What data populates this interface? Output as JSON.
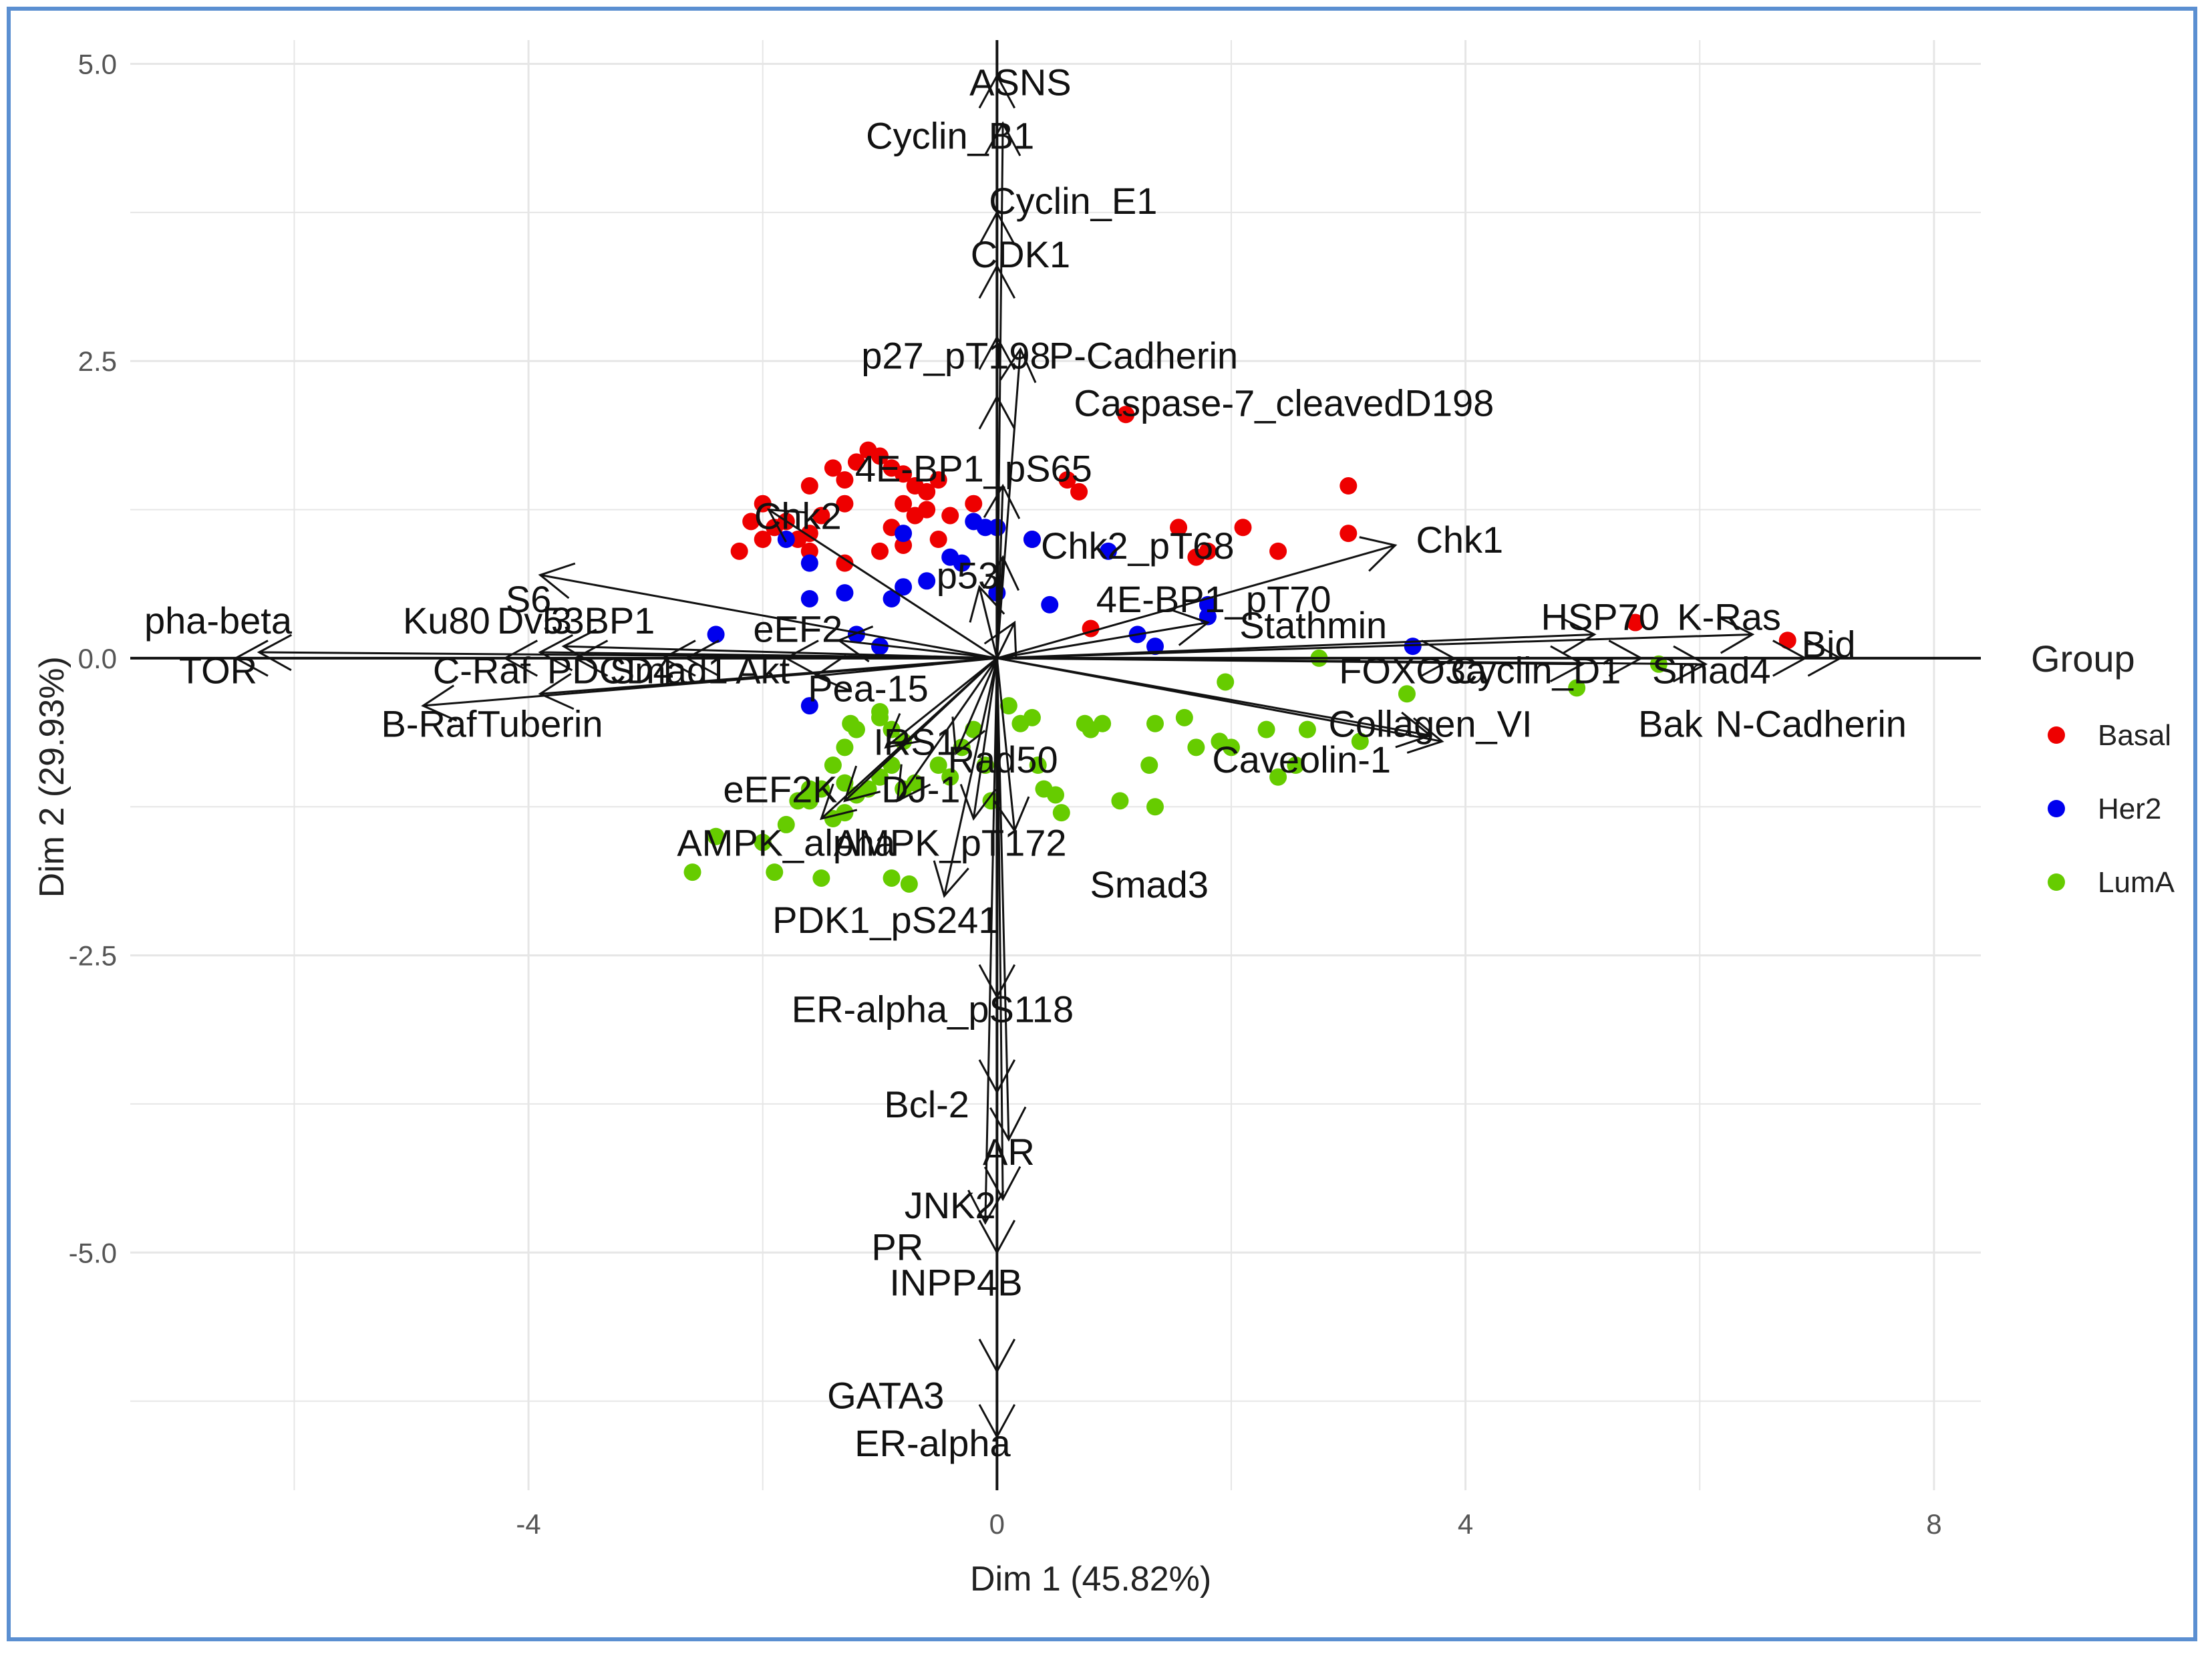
{
  "chart_data": {
    "type": "scatter",
    "subtype": "pca-biplot",
    "xlabel": "Dim 1 (45.82%)",
    "ylabel": "Dim 2 (29.93%)",
    "xlim": [
      -7.4,
      8.4
    ],
    "ylim": [
      -7.0,
      5.2
    ],
    "xticks": [
      {
        "value": -4,
        "label": "-4"
      },
      {
        "value": 0,
        "label": "0"
      },
      {
        "value": 4,
        "label": "4"
      },
      {
        "value": 8,
        "label": "8"
      }
    ],
    "yticks": [
      {
        "value": 5.0,
        "label": "5.0"
      },
      {
        "value": 2.5,
        "label": "2.5"
      },
      {
        "value": 0.0,
        "label": "0.0"
      },
      {
        "value": -2.5,
        "label": "-2.5"
      },
      {
        "value": -5.0,
        "label": "-5.0"
      }
    ],
    "legend": {
      "title": "Group",
      "position": "right",
      "entries": [
        {
          "name": "Basal",
          "color": "#ee0000"
        },
        {
          "name": "Her2",
          "color": "#0000ee"
        },
        {
          "name": "LumA",
          "color": "#66cc00"
        }
      ]
    },
    "series": [
      {
        "name": "Basal",
        "color": "#ee0000",
        "points": [
          [
            -2.0,
            1.3
          ],
          [
            -1.8,
            1.15
          ],
          [
            -1.6,
            1.45
          ],
          [
            -1.4,
            1.6
          ],
          [
            -1.3,
            1.5
          ],
          [
            -1.2,
            1.65
          ],
          [
            -1.1,
            1.75
          ],
          [
            -1.0,
            1.7
          ],
          [
            -0.9,
            1.6
          ],
          [
            -0.8,
            1.55
          ],
          [
            -0.7,
            1.45
          ],
          [
            -0.6,
            1.4
          ],
          [
            -0.5,
            1.5
          ],
          [
            -0.7,
            1.2
          ],
          [
            -0.6,
            1.25
          ],
          [
            -0.8,
            1.3
          ],
          [
            -0.9,
            1.1
          ],
          [
            -1.3,
            1.3
          ],
          [
            -1.5,
            1.2
          ],
          [
            -1.7,
            1.0
          ],
          [
            -1.9,
            1.1
          ],
          [
            -2.1,
            1.15
          ],
          [
            -2.0,
            1.0
          ],
          [
            -2.2,
            0.9
          ],
          [
            -1.6,
            0.9
          ],
          [
            -1.3,
            0.8
          ],
          [
            -1.0,
            0.9
          ],
          [
            -0.8,
            0.95
          ],
          [
            -0.5,
            1.0
          ],
          [
            -0.4,
            1.2
          ],
          [
            -0.2,
            1.3
          ],
          [
            0.0,
            1.1
          ],
          [
            0.3,
            1.0
          ],
          [
            0.6,
            1.5
          ],
          [
            0.7,
            1.4
          ],
          [
            1.1,
            2.05
          ],
          [
            1.55,
            1.1
          ],
          [
            1.7,
            0.85
          ],
          [
            1.8,
            0.9
          ],
          [
            2.1,
            1.1
          ],
          [
            2.4,
            0.9
          ],
          [
            3.0,
            1.45
          ],
          [
            3.0,
            1.05
          ],
          [
            0.8,
            0.25
          ],
          [
            -1.6,
            1.05
          ],
          [
            5.45,
            0.3
          ],
          [
            6.75,
            0.15
          ]
        ]
      },
      {
        "name": "Her2",
        "color": "#0000ee",
        "points": [
          [
            -2.4,
            0.2
          ],
          [
            -1.8,
            1.0
          ],
          [
            -1.6,
            0.8
          ],
          [
            -1.6,
            0.5
          ],
          [
            -1.3,
            0.55
          ],
          [
            -1.2,
            0.2
          ],
          [
            -1.0,
            0.1
          ],
          [
            -0.9,
            0.5
          ],
          [
            -0.8,
            0.6
          ],
          [
            -0.6,
            0.65
          ],
          [
            -0.4,
            0.85
          ],
          [
            -0.3,
            0.8
          ],
          [
            -0.2,
            1.15
          ],
          [
            -0.1,
            1.1
          ],
          [
            0.0,
            1.1
          ],
          [
            0.0,
            0.55
          ],
          [
            0.3,
            1.0
          ],
          [
            0.45,
            0.45
          ],
          [
            0.95,
            0.9
          ],
          [
            1.2,
            0.2
          ],
          [
            1.35,
            0.1
          ],
          [
            1.8,
            0.45
          ],
          [
            1.8,
            0.35
          ],
          [
            -1.6,
            -0.4
          ],
          [
            -0.8,
            1.05
          ],
          [
            3.55,
            0.1
          ]
        ]
      },
      {
        "name": "LumA",
        "color": "#66cc00",
        "points": [
          [
            -2.6,
            -1.8
          ],
          [
            -2.4,
            -1.5
          ],
          [
            -2.0,
            -1.55
          ],
          [
            -1.8,
            -1.4
          ],
          [
            -1.7,
            -1.2
          ],
          [
            -1.6,
            -1.2
          ],
          [
            -1.5,
            -1.1
          ],
          [
            -1.4,
            -1.35
          ],
          [
            -1.3,
            -1.3
          ],
          [
            -1.2,
            -1.15
          ],
          [
            -1.1,
            -1.1
          ],
          [
            -1.0,
            -1.0
          ],
          [
            -0.9,
            -0.9
          ],
          [
            -0.8,
            -1.1
          ],
          [
            -0.7,
            -1.05
          ],
          [
            -1.4,
            -0.9
          ],
          [
            -1.3,
            -0.75
          ],
          [
            -1.25,
            -0.55
          ],
          [
            -1.0,
            -0.45
          ],
          [
            -0.9,
            -0.6
          ],
          [
            -0.8,
            -0.7
          ],
          [
            -0.5,
            -0.9
          ],
          [
            -0.4,
            -1.0
          ],
          [
            -0.3,
            -0.75
          ],
          [
            -0.2,
            -0.6
          ],
          [
            -0.1,
            -0.9
          ],
          [
            -0.05,
            -1.2
          ],
          [
            0.1,
            -0.4
          ],
          [
            0.2,
            -0.55
          ],
          [
            0.3,
            -0.5
          ],
          [
            0.35,
            -0.9
          ],
          [
            0.4,
            -1.1
          ],
          [
            0.5,
            -1.15
          ],
          [
            0.55,
            -1.3
          ],
          [
            0.8,
            -0.6
          ],
          [
            0.75,
            -0.55
          ],
          [
            0.9,
            -0.55
          ],
          [
            1.05,
            -1.2
          ],
          [
            1.35,
            -1.25
          ],
          [
            1.35,
            -0.55
          ],
          [
            1.3,
            -0.9
          ],
          [
            1.6,
            -0.5
          ],
          [
            1.7,
            -0.75
          ],
          [
            1.9,
            -0.7
          ],
          [
            1.95,
            -0.2
          ],
          [
            2.0,
            -0.75
          ],
          [
            2.3,
            -0.6
          ],
          [
            2.4,
            -1.0
          ],
          [
            2.55,
            -0.9
          ],
          [
            2.65,
            -0.6
          ],
          [
            2.75,
            0.0
          ],
          [
            3.1,
            -0.7
          ],
          [
            3.5,
            -0.3
          ],
          [
            4.95,
            -0.25
          ],
          [
            5.65,
            -0.05
          ],
          [
            -1.2,
            -0.6
          ],
          [
            -1.0,
            -0.5
          ],
          [
            -1.9,
            -1.8
          ],
          [
            -1.5,
            -1.85
          ],
          [
            -0.9,
            -1.85
          ],
          [
            -0.75,
            -1.9
          ],
          [
            -1.3,
            -1.05
          ],
          [
            -1.6,
            -1.1
          ]
        ]
      }
    ],
    "vectors": [
      {
        "label": "ASNS",
        "x": 0.0,
        "y": 4.9
      },
      {
        "label": "Cyclin_B1",
        "x": 0.05,
        "y": 4.5
      },
      {
        "label": "Cyclin_E1",
        "x": 0.0,
        "y": 3.75
      },
      {
        "label": "CDK1",
        "x": 0.0,
        "y": 3.3
      },
      {
        "label": "p27_pT198",
        "x": 0.0,
        "y": 2.7
      },
      {
        "label": "P-Cadherin",
        "x": 0.2,
        "y": 2.6
      },
      {
        "label": "Caspase-7_cleavedD198",
        "x": 0.0,
        "y": 2.2
      },
      {
        "label": "4E-BP1_pS65",
        "x": 0.05,
        "y": 1.45
      },
      {
        "label": "Chk2",
        "x": -1.95,
        "y": 1.25
      },
      {
        "label": "Chk2_pT68",
        "x": 0.05,
        "y": 0.85
      },
      {
        "label": "p53",
        "x": -0.15,
        "y": 0.6
      },
      {
        "label": "Chk1",
        "x": 3.4,
        "y": 0.95
      },
      {
        "label": "4E-BP1_pT70",
        "x": 0.15,
        "y": 0.3
      },
      {
        "label": "Stathmin",
        "x": 1.8,
        "y": 0.3
      },
      {
        "label": "HSP70",
        "x": 5.1,
        "y": 0.2
      },
      {
        "label": "K-Ras",
        "x": 6.45,
        "y": 0.2
      },
      {
        "label": "Bid",
        "x": 7.2,
        "y": 0.0
      },
      {
        "label": "FOXO3a",
        "x": 3.9,
        "y": 0.0
      },
      {
        "label": "Cyclin_D1",
        "x": 5.0,
        "y": -0.05
      },
      {
        "label": "Smad4",
        "x": 6.05,
        "y": -0.05
      },
      {
        "label": "Bak",
        "x": 5.5,
        "y": 0.0
      },
      {
        "label": "N-Cadherin",
        "x": 6.9,
        "y": 0.0
      },
      {
        "label": "Collagen_VI",
        "x": 3.7,
        "y": -0.65
      },
      {
        "label": "Caveolin-1",
        "x": 3.8,
        "y": -0.7
      },
      {
        "label": "Smad3",
        "x": 0.15,
        "y": -1.45
      },
      {
        "label": "S6",
        "x": -3.9,
        "y": 0.7
      },
      {
        "label": "53BP1",
        "x": -3.7,
        "y": 0.1
      },
      {
        "label": "Ku80",
        "x": -3.9,
        "y": 0.05
      },
      {
        "label": "Dvl3",
        "x": -3.6,
        "y": 0.0
      },
      {
        "label": "PDCD4",
        "x": -2.85,
        "y": 0.0
      },
      {
        "label": "Smad1",
        "x": -2.65,
        "y": 0.0
      },
      {
        "label": "Akt",
        "x": -1.8,
        "y": 0.0
      },
      {
        "label": "eEF2",
        "x": -1.35,
        "y": 0.15
      },
      {
        "label": "PEA-15",
        "x": -1.55,
        "y": -0.15
      },
      {
        "label": "IRS1",
        "x": -0.95,
        "y": -0.75
      },
      {
        "label": "Rad50",
        "x": -0.35,
        "y": -0.8
      },
      {
        "label": "DJ-1",
        "x": -0.85,
        "y": -1.2
      },
      {
        "label": "eEF2K",
        "x": -1.3,
        "y": -1.2
      },
      {
        "label": "AMPK_alpha",
        "x": -1.5,
        "y": -1.35
      },
      {
        "label": "AMPK_pT172",
        "x": -0.2,
        "y": -1.35
      },
      {
        "label": "PDK1_pS241",
        "x": -0.45,
        "y": -2.0
      },
      {
        "label": "ER-alpha_pS118",
        "x": 0.0,
        "y": -2.85
      },
      {
        "label": "Bcl-2",
        "x": 0.0,
        "y": -3.65
      },
      {
        "label": "AR",
        "x": 0.1,
        "y": -4.05
      },
      {
        "label": "JNK2",
        "x": 0.05,
        "y": -4.55
      },
      {
        "label": "PR",
        "x": -0.1,
        "y": -4.75
      },
      {
        "label": "INPP4B",
        "x": 0.0,
        "y": -5.0
      },
      {
        "label": "GATA3",
        "x": 0.0,
        "y": -6.0
      },
      {
        "label": "ER-alpha",
        "x": 0.0,
        "y": -6.55
      },
      {
        "label": "alpha-beta (truncated)",
        "x": -6.3,
        "y": 0.05
      },
      {
        "label": "mTOR (truncated)",
        "x": -6.5,
        "y": 0.0
      },
      {
        "label": "C-Raf",
        "x": -4.2,
        "y": 0.0
      },
      {
        "label": "B-Raf",
        "x": -4.9,
        "y": -0.4
      },
      {
        "label": "Tuberin",
        "x": -3.9,
        "y": -0.3
      }
    ],
    "labels": [
      {
        "text": "ASNS",
        "x": 0.2,
        "y": 4.85
      },
      {
        "text": "Cyclin_B1",
        "x": -0.4,
        "y": 4.4
      },
      {
        "text": "Cyclin_E1",
        "x": 0.65,
        "y": 3.85
      },
      {
        "text": "CDK1",
        "x": 0.2,
        "y": 3.4
      },
      {
        "text": "p27_pT198",
        "x": -0.35,
        "y": 2.55
      },
      {
        "text": "P-Cadherin",
        "x": 1.25,
        "y": 2.55
      },
      {
        "text": "Caspase-7_cleavedD198",
        "x": 2.45,
        "y": 2.15
      },
      {
        "text": "4E-BP1_pS65",
        "x": -0.2,
        "y": 1.6
      },
      {
        "text": "Chk2",
        "x": -1.7,
        "y": 1.2
      },
      {
        "text": "Chk2_pT68",
        "x": 1.2,
        "y": 0.95
      },
      {
        "text": "p53",
        "x": -0.25,
        "y": 0.7
      },
      {
        "text": "Chk1",
        "x": 3.95,
        "y": 1.0
      },
      {
        "text": "4E-BP1_pT70",
        "x": 1.85,
        "y": 0.5
      },
      {
        "text": "Stathmin",
        "x": 2.7,
        "y": 0.28
      },
      {
        "text": "HSP70",
        "x": 5.15,
        "y": 0.35
      },
      {
        "text": "K-Ras",
        "x": 6.25,
        "y": 0.35
      },
      {
        "text": "Bid",
        "x": 7.1,
        "y": 0.12
      },
      {
        "text": "FOXO3a",
        "x": 3.55,
        "y": -0.1
      },
      {
        "text": "Cyclin_D1",
        "x": 4.6,
        "y": -0.1
      },
      {
        "text": "Smad4",
        "x": 6.1,
        "y": -0.1
      },
      {
        "text": "Bak",
        "x": 5.75,
        "y": -0.55
      },
      {
        "text": "N-Cadherin",
        "x": 6.95,
        "y": -0.55
      },
      {
        "text": "Collagen_VI",
        "x": 3.7,
        "y": -0.55
      },
      {
        "text": "Caveolin-1",
        "x": 2.6,
        "y": -0.85
      },
      {
        "text": "Smad3",
        "x": 1.3,
        "y": -1.9
      },
      {
        "text": "S6",
        "x": -4.0,
        "y": 0.5
      },
      {
        "text": "53BP1",
        "x": -3.4,
        "y": 0.32
      },
      {
        "text": "Ku80",
        "x": -4.7,
        "y": 0.32
      },
      {
        "text": "Dvl3",
        "x": -3.95,
        "y": 0.32
      },
      {
        "text": "PDCD4",
        "x": -3.3,
        "y": -0.1
      },
      {
        "text": "Smad1",
        "x": -2.8,
        "y": -0.1
      },
      {
        "text": "Akt",
        "x": -2.0,
        "y": -0.1
      },
      {
        "text": "eEF2",
        "x": -1.7,
        "y": 0.25
      },
      {
        "text": "Pea-15",
        "x": -1.1,
        "y": -0.25
      },
      {
        "text": "IRS1",
        "x": -0.7,
        "y": -0.7
      },
      {
        "text": "Rad50",
        "x": 0.05,
        "y": -0.85
      },
      {
        "text": "DJ-1",
        "x": -0.65,
        "y": -1.1
      },
      {
        "text": "eEF2K",
        "x": -1.85,
        "y": -1.1
      },
      {
        "text": "AMPK_alpha",
        "x": -1.8,
        "y": -1.55
      },
      {
        "text": "AMPK_pT172",
        "x": -0.4,
        "y": -1.55
      },
      {
        "text": "PDK1_pS241",
        "x": -0.95,
        "y": -2.2
      },
      {
        "text": "ER-alpha_pS118",
        "x": -0.55,
        "y": -2.95
      },
      {
        "text": "Bcl-2",
        "x": -0.6,
        "y": -3.75
      },
      {
        "text": "AR",
        "x": 0.1,
        "y": -4.15
      },
      {
        "text": "JNK2",
        "x": -0.4,
        "y": -4.6
      },
      {
        "text": "PR",
        "x": -0.85,
        "y": -4.95
      },
      {
        "text": "INPP4B",
        "x": -0.35,
        "y": -5.25
      },
      {
        "text": "GATA3",
        "x": -0.95,
        "y": -6.2
      },
      {
        "text": "ER-alpha",
        "x": -0.55,
        "y": -6.6
      },
      {
        "text": "pha-beta",
        "x": -6.65,
        "y": 0.32
      },
      {
        "text": "TOR",
        "x": -6.65,
        "y": -0.1
      },
      {
        "text": "C-Raf",
        "x": -4.4,
        "y": -0.1
      },
      {
        "text": "B-Raf",
        "x": -4.85,
        "y": -0.55
      },
      {
        "text": "Tuberin",
        "x": -3.9,
        "y": -0.55
      }
    ]
  }
}
